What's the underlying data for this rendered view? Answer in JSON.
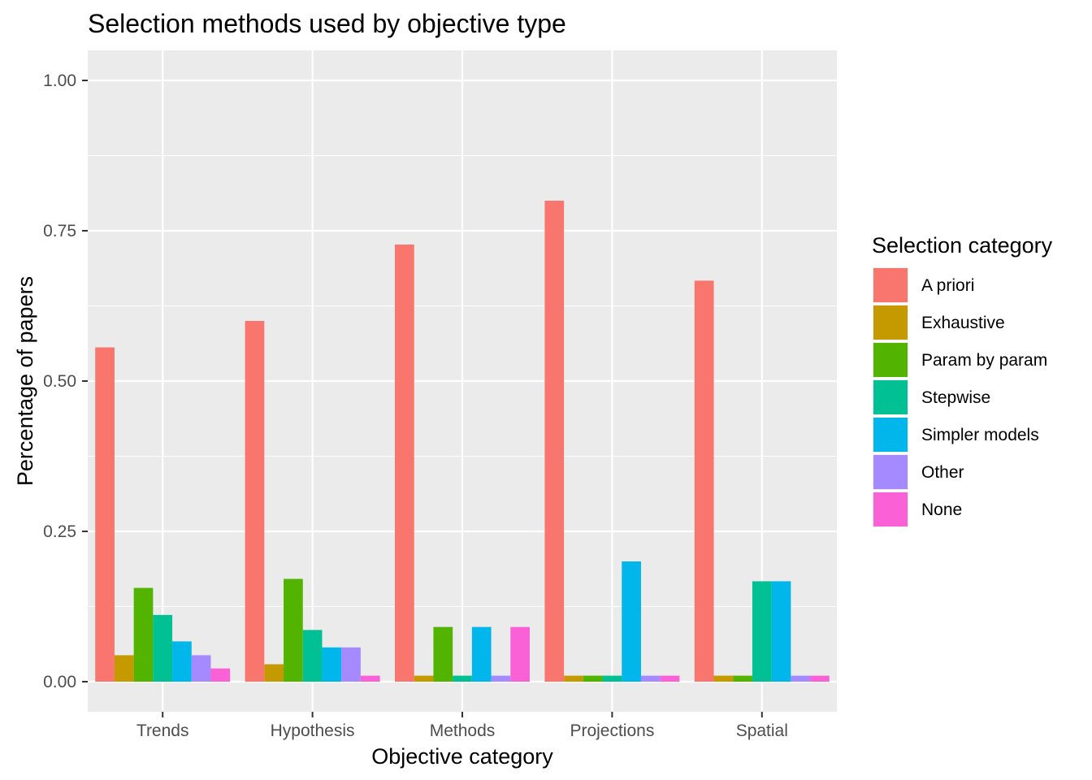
{
  "chart_data": {
    "type": "bar",
    "title": "Selection methods used by objective type",
    "xlabel": "Objective category",
    "ylabel": "Percentage of papers",
    "categories": [
      "Trends",
      "Hypothesis",
      "Methods",
      "Projections",
      "Spatial"
    ],
    "y_ticks": [
      "0.00",
      "0.25",
      "0.50",
      "0.75",
      "1.00"
    ],
    "ylim": [
      -0.05,
      1.05
    ],
    "grid": true,
    "legend_title": "Selection category",
    "legend_position": "right",
    "series": [
      {
        "name": "A priori",
        "color": "#F8766D",
        "values": [
          0.556,
          0.6,
          0.727,
          0.8,
          0.667
        ]
      },
      {
        "name": "Exhaustive",
        "color": "#C49A00",
        "values": [
          0.044,
          0.029,
          0.01,
          0.01,
          0.01
        ]
      },
      {
        "name": "Param by param",
        "color": "#53B400",
        "values": [
          0.156,
          0.171,
          0.091,
          0.01,
          0.01
        ]
      },
      {
        "name": "Stepwise",
        "color": "#00C094",
        "values": [
          0.111,
          0.086,
          0.01,
          0.01,
          0.167
        ]
      },
      {
        "name": "Simpler models",
        "color": "#00B6EB",
        "values": [
          0.067,
          0.057,
          0.091,
          0.2,
          0.167
        ]
      },
      {
        "name": "Other",
        "color": "#A58AFF",
        "values": [
          0.044,
          0.057,
          0.01,
          0.01,
          0.01
        ]
      },
      {
        "name": "None",
        "color": "#FB61D7",
        "values": [
          0.022,
          0.01,
          0.091,
          0.01,
          0.01
        ]
      }
    ]
  }
}
